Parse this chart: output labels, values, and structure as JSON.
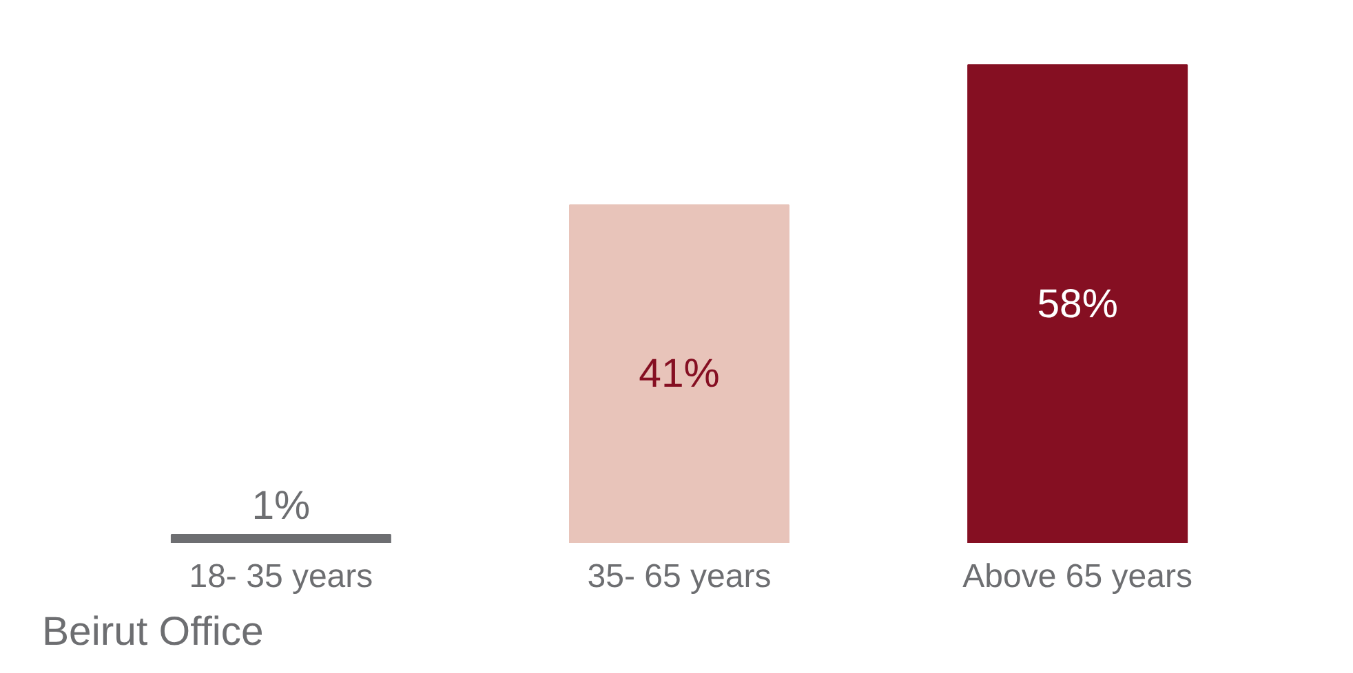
{
  "chart_data": {
    "type": "bar",
    "title": "Beirut Office",
    "categories": [
      "18- 35 years",
      "35- 65 years",
      "Above 65 years"
    ],
    "values": [
      1,
      41,
      58
    ],
    "colors": [
      "#6d6e71",
      "#e8c4ba",
      "#850f22"
    ],
    "value_labels": [
      "1%",
      "41%",
      "58%"
    ],
    "grid": false
  }
}
